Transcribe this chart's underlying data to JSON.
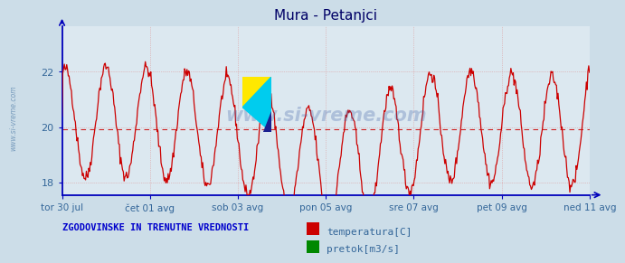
{
  "title": "Mura - Petanjci",
  "bg_color": "#ccdde8",
  "plot_bg_color": "#dce8f0",
  "line_color": "#cc0000",
  "avg_line_color": "#cc0000",
  "avg_value": 19.93,
  "ylim": [
    17.55,
    23.65
  ],
  "yticks": [
    18,
    20,
    22
  ],
  "xtick_labels": [
    "tor 30 jul",
    "čet 01 avg",
    "sob 03 avg",
    "pon 05 avg",
    "sre 07 avg",
    "pet 09 avg",
    "ned 11 avg"
  ],
  "grid_color": "#dd9999",
  "title_color": "#000066",
  "axis_color": "#0000bb",
  "tick_color": "#336699",
  "legend_title": "ZGODOVINSKE IN TRENUTNE VREDNOSTI",
  "legend_title_color": "#0000cc",
  "legend_items": [
    {
      "label": "temperatura[C]",
      "color": "#cc0000"
    },
    {
      "label": "pretok[m3/s]",
      "color": "#008800"
    }
  ],
  "watermark_text": "www.si-vreme.com",
  "side_text": "www.si-vreme.com",
  "n_points": 672
}
